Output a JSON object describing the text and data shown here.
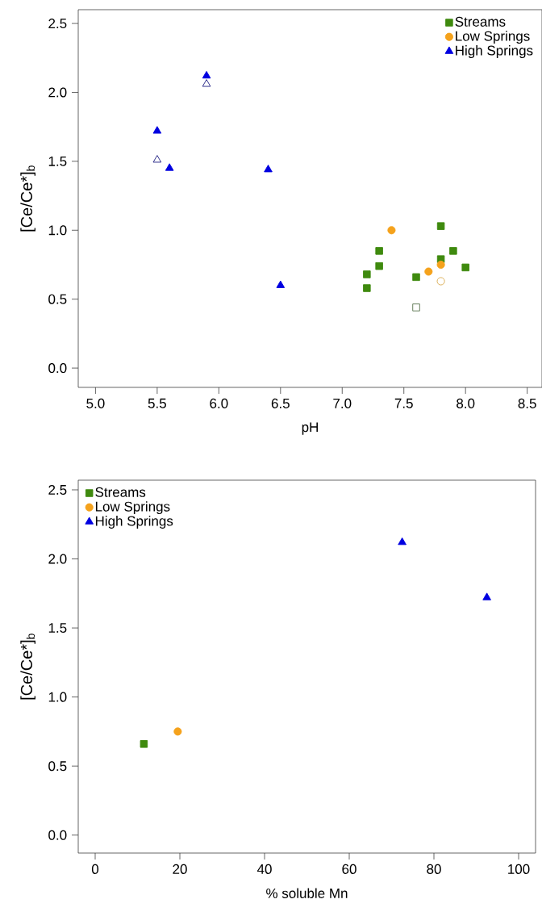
{
  "chart_data": [
    {
      "type": "scatter",
      "xlabel": "pH",
      "ylabel": "[Ce/Ce*]$_{b}$",
      "xlim": [
        4.86,
        8.62
      ],
      "ylim": [
        -0.14,
        2.6
      ],
      "xticks": [
        {
          "value": 5,
          "label": "5.0"
        },
        5.5,
        {
          "value": 6,
          "label": "6.0"
        },
        6.5,
        {
          "value": 7,
          "label": "7.0"
        },
        7.5,
        {
          "value": 8,
          "label": "8.0"
        },
        8.5
      ],
      "yticks": [
        {
          "value": 0,
          "label": "0.0"
        },
        0.5,
        {
          "value": 1,
          "label": "1.0"
        },
        1.5,
        {
          "value": 2,
          "label": "2.0"
        },
        2.5
      ],
      "legend": "top right",
      "grid": false,
      "series": [
        {
          "name": "Streams",
          "color": "#3f8a0e",
          "marker": "square",
          "x": [
            7.2,
            7.2,
            7.3,
            7.3,
            7.6,
            7.8,
            7.8,
            7.9,
            8.0
          ],
          "values": [
            0.68,
            0.58,
            0.85,
            0.74,
            0.66,
            1.03,
            0.79,
            0.85,
            0.73
          ]
        },
        {
          "name": "Low Springs",
          "color": "#f5a21c",
          "marker": "circle",
          "x": [
            7.4,
            7.7,
            7.8
          ],
          "values": [
            1.0,
            0.7,
            0.75
          ]
        },
        {
          "name": "High Springs",
          "color": "#0000e0",
          "marker": "triangle",
          "x": [
            5.5,
            5.6,
            5.9,
            6.4,
            6.5
          ],
          "values": [
            1.72,
            1.45,
            2.12,
            1.44,
            0.6
          ]
        },
        {
          "color": "#55704a",
          "marker": "square",
          "x": [
            7.6
          ],
          "values": [
            0.44
          ]
        },
        {
          "color": "#d8a84a",
          "marker": "circle",
          "x": [
            7.8
          ],
          "values": [
            0.63
          ]
        },
        {
          "color": "#1a1a80",
          "marker": "triangle",
          "x": [
            5.9,
            5.5
          ],
          "values": [
            2.06,
            1.51
          ]
        }
      ]
    },
    {
      "type": "scatter",
      "xlabel": "% soluble Mn",
      "ylabel": "[Ce/Ce*]$_{b}$",
      "xlim": [
        -4,
        104
      ],
      "ylim": [
        -0.13,
        2.57
      ],
      "xticks": [
        0,
        20,
        40,
        60,
        80,
        100
      ],
      "yticks": [
        {
          "value": 0,
          "label": "0.0"
        },
        0.5,
        {
          "value": 1,
          "label": "1.0"
        },
        1.5,
        {
          "value": 2,
          "label": "2.0"
        },
        2.5
      ],
      "legend": "top left",
      "grid": false,
      "series": [
        {
          "name": "Streams",
          "color": "#3f8a0e",
          "marker": "square",
          "x": [
            11.5
          ],
          "values": [
            0.66
          ]
        },
        {
          "name": "Low Springs",
          "color": "#f5a21c",
          "marker": "circle",
          "x": [
            19.5
          ],
          "values": [
            0.75
          ]
        },
        {
          "name": "High Springs",
          "color": "#0000e0",
          "marker": "triangle",
          "x": [
            72.5,
            92.5
          ],
          "values": [
            2.12,
            1.72
          ]
        }
      ]
    }
  ]
}
